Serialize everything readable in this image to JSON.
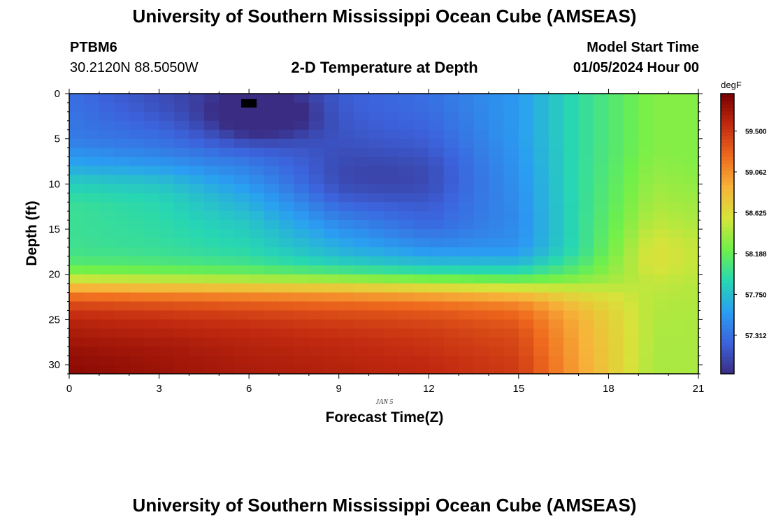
{
  "header": {
    "title": "University of Southern Mississippi Ocean Cube (AMSEAS)",
    "station": "PTBM6",
    "coords": "30.2120N  88.5050W",
    "subtitle": "2-D Temperature at Depth",
    "model_start_label": "Model Start Time",
    "model_start_value": "01/05/2024 Hour 00"
  },
  "footer": {
    "title": "University of Southern Mississippi Ocean Cube (AMSEAS)"
  },
  "chart_data": {
    "type": "heatmap",
    "title": "2-D Temperature at Depth",
    "xlabel": "Forecast Time(Z)",
    "ylabel": "Depth (ft)",
    "date_label": "JAN 5",
    "xlim": [
      0,
      21
    ],
    "ylim": [
      0,
      31
    ],
    "x_ticks": [
      0,
      3,
      6,
      9,
      12,
      15,
      18,
      21
    ],
    "y_ticks": [
      0,
      5,
      10,
      15,
      20,
      25,
      30
    ],
    "colorbar": {
      "unit": "degF",
      "min": 56.9,
      "max": 59.9,
      "ticks": [
        "59.500",
        "59.062",
        "58.625",
        "58.188",
        "57.750",
        "57.312"
      ],
      "tick_values": [
        59.5,
        59.062,
        58.625,
        58.188,
        57.75,
        57.312
      ],
      "colors": [
        "#3a2c82",
        "#3c63dc",
        "#2a9ef2",
        "#27d7b2",
        "#6ff04a",
        "#d6e43a",
        "#f7b339",
        "#ef6a1e",
        "#c22a10",
        "#7a0000"
      ]
    },
    "x_steps": 42,
    "depth_levels": [
      0,
      1,
      2,
      3,
      4,
      5,
      6,
      7,
      8,
      9,
      10,
      11,
      12,
      13,
      14,
      15,
      16,
      17,
      18,
      19,
      20,
      21,
      22,
      23,
      24,
      25,
      26,
      27,
      28,
      29,
      30,
      31
    ],
    "temperature_profiles": [
      {
        "hour": 0,
        "temps": [
          57.3,
          57.32,
          57.33,
          57.34,
          57.36,
          57.38,
          57.45,
          57.55,
          57.62,
          57.75,
          57.85,
          57.92,
          57.98,
          58.0,
          58.0,
          58.0,
          58.0,
          58.02,
          58.05,
          58.15,
          58.35,
          58.7,
          59.1,
          59.35,
          59.5,
          59.6,
          59.65,
          59.7,
          59.74,
          59.78,
          59.8,
          59.82
        ]
      },
      {
        "hour": 3,
        "temps": [
          57.1,
          57.12,
          57.15,
          57.2,
          57.25,
          57.3,
          57.36,
          57.45,
          57.55,
          57.68,
          57.78,
          57.85,
          57.9,
          57.92,
          57.93,
          57.95,
          57.96,
          57.98,
          58.02,
          58.12,
          58.3,
          58.65,
          59.05,
          59.3,
          59.45,
          59.55,
          59.6,
          59.65,
          59.7,
          59.72,
          59.74,
          59.75
        ]
      },
      {
        "hour": 6,
        "temps": [
          56.95,
          56.92,
          56.92,
          56.95,
          57.0,
          57.1,
          57.2,
          57.3,
          57.38,
          57.45,
          57.52,
          57.6,
          57.66,
          57.72,
          57.78,
          57.82,
          57.86,
          57.9,
          57.95,
          58.05,
          58.25,
          58.6,
          59.0,
          59.25,
          59.4,
          59.5,
          59.55,
          59.6,
          59.62,
          59.65,
          59.66,
          59.68
        ]
      },
      {
        "hour": 9,
        "temps": [
          57.2,
          57.2,
          57.2,
          57.18,
          57.16,
          57.15,
          57.14,
          57.14,
          57.15,
          57.16,
          57.18,
          57.22,
          57.28,
          57.35,
          57.42,
          57.5,
          57.58,
          57.66,
          57.75,
          57.9,
          58.15,
          58.55,
          58.95,
          59.2,
          59.35,
          59.45,
          59.5,
          59.55,
          59.58,
          59.6,
          59.62,
          59.63
        ]
      },
      {
        "hour": 12,
        "temps": [
          57.3,
          57.3,
          57.28,
          57.26,
          57.24,
          57.22,
          57.2,
          57.18,
          57.17,
          57.17,
          57.18,
          57.19,
          57.21,
          57.23,
          57.25,
          57.3,
          57.38,
          57.48,
          57.62,
          57.78,
          58.05,
          58.45,
          58.85,
          59.15,
          59.3,
          59.4,
          59.45,
          59.5,
          59.52,
          59.55,
          59.57,
          59.58
        ]
      },
      {
        "hour": 15,
        "temps": [
          57.55,
          57.55,
          57.55,
          57.55,
          57.55,
          57.55,
          57.54,
          57.53,
          57.52,
          57.51,
          57.5,
          57.49,
          57.48,
          57.47,
          57.47,
          57.47,
          57.48,
          57.52,
          57.6,
          57.78,
          58.0,
          58.35,
          58.75,
          59.05,
          59.2,
          59.3,
          59.35,
          59.4,
          59.42,
          59.45,
          59.47,
          59.48
        ]
      },
      {
        "hour": 17,
        "temps": [
          57.95,
          57.95,
          57.95,
          57.95,
          57.95,
          57.95,
          57.95,
          57.95,
          57.95,
          57.95,
          57.95,
          57.95,
          57.95,
          57.95,
          57.95,
          57.95,
          57.95,
          57.95,
          58.0,
          58.1,
          58.2,
          58.4,
          58.6,
          58.75,
          58.85,
          58.9,
          58.92,
          58.94,
          58.95,
          58.96,
          58.97,
          58.98
        ]
      },
      {
        "hour": 19.5,
        "temps": [
          58.3,
          58.3,
          58.3,
          58.3,
          58.3,
          58.3,
          58.3,
          58.32,
          58.34,
          58.36,
          58.38,
          58.4,
          58.42,
          58.45,
          58.48,
          58.52,
          58.56,
          58.6,
          58.62,
          58.6,
          58.55,
          58.5,
          58.48,
          58.46,
          58.45,
          58.44,
          58.44,
          58.43,
          58.43,
          58.42,
          58.42,
          58.42
        ]
      },
      {
        "hour": 21,
        "temps": [
          58.3,
          58.3,
          58.3,
          58.3,
          58.3,
          58.3,
          58.3,
          58.3,
          58.3,
          58.32,
          58.34,
          58.36,
          58.38,
          58.4,
          58.42,
          58.45,
          58.48,
          58.5,
          58.5,
          58.5,
          58.48,
          58.46,
          58.45,
          58.44,
          58.44,
          58.43,
          58.43,
          58.42,
          58.42,
          58.42,
          58.42,
          58.42
        ]
      }
    ],
    "cold_core": {
      "hour": 6.6,
      "depth": 2.2,
      "amplitude": 0.35,
      "width_hours": 1.6,
      "width_ft": 2.4
    },
    "mid_cool_lobe": {
      "hour": 10.5,
      "depth": 9.5,
      "amplitude": 0.12,
      "width_hours": 2.5,
      "width_ft": 3.0
    },
    "marker": {
      "hour": 6.0,
      "depth": 1.0,
      "label": "data point marker"
    }
  }
}
